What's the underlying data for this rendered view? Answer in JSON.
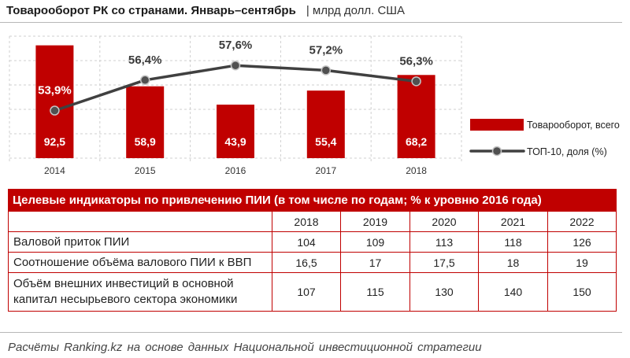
{
  "chart_data": {
    "type": "bar",
    "title": "Товарооборот РК со странами. Январь–сентябрь",
    "unit": "| млрд долл. США",
    "categories": [
      "2014",
      "2015",
      "2016",
      "2017",
      "2018"
    ],
    "series": [
      {
        "name": "Товарооборот, всего",
        "type": "bar",
        "values": [
          92.5,
          58.9,
          43.9,
          55.4,
          68.2
        ],
        "color": "#c00000"
      },
      {
        "name": "ТОП-10, доля (%)",
        "type": "line",
        "values": [
          53.9,
          56.4,
          57.6,
          57.2,
          56.3
        ],
        "suffix": "%",
        "color": "#404040"
      }
    ],
    "ylim": [
      0,
      100
    ],
    "y2lim": [
      50,
      60
    ],
    "decimal_separator": ",",
    "grid": true,
    "legend": "right"
  },
  "table": {
    "title": "Целевые индикаторы по привлечению ПИИ (в том числе по годам; % к уровню 2016 года)",
    "columns": [
      "2018",
      "2019",
      "2020",
      "2021",
      "2022"
    ],
    "rows": [
      {
        "label": "Валовой приток ПИИ",
        "values": [
          "104",
          "109",
          "113",
          "118",
          "126"
        ]
      },
      {
        "label": "Соотношение объёма валового ПИИ к ВВП",
        "values": [
          "16,5",
          "17",
          "17,5",
          "18",
          "19"
        ]
      },
      {
        "label": "Объём внешних инвестиций в основной капитал несырьевого сектора экономики",
        "values": [
          "107",
          "115",
          "130",
          "140",
          "150"
        ]
      }
    ]
  },
  "footer": {
    "source": "Расчёты Ranking.kz на основе данных Национальной инвестиционной стратегии"
  }
}
